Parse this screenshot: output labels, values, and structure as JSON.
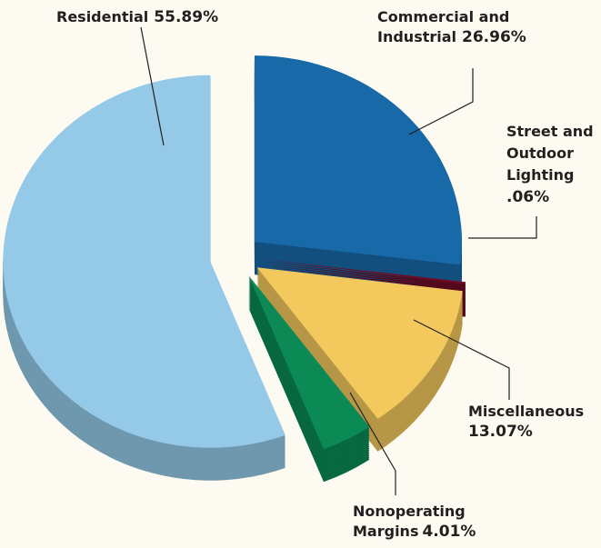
{
  "chart_data": {
    "type": "pie",
    "categories": [
      "Commercial and Industrial",
      "Street and Outdoor Lighting",
      "Miscellaneous",
      "Nonoperating Margins",
      "Residential"
    ],
    "values": [
      26.96,
      0.06,
      13.07,
      4.01,
      55.89
    ],
    "value_labels": [
      "26.96%",
      ".06%",
      "13.07%",
      "4.01%",
      "55.89%"
    ],
    "colors": [
      "#1869a8",
      "#6e0c24",
      "#f3c95d",
      "#0b8a55",
      "#94cae8"
    ]
  }
}
